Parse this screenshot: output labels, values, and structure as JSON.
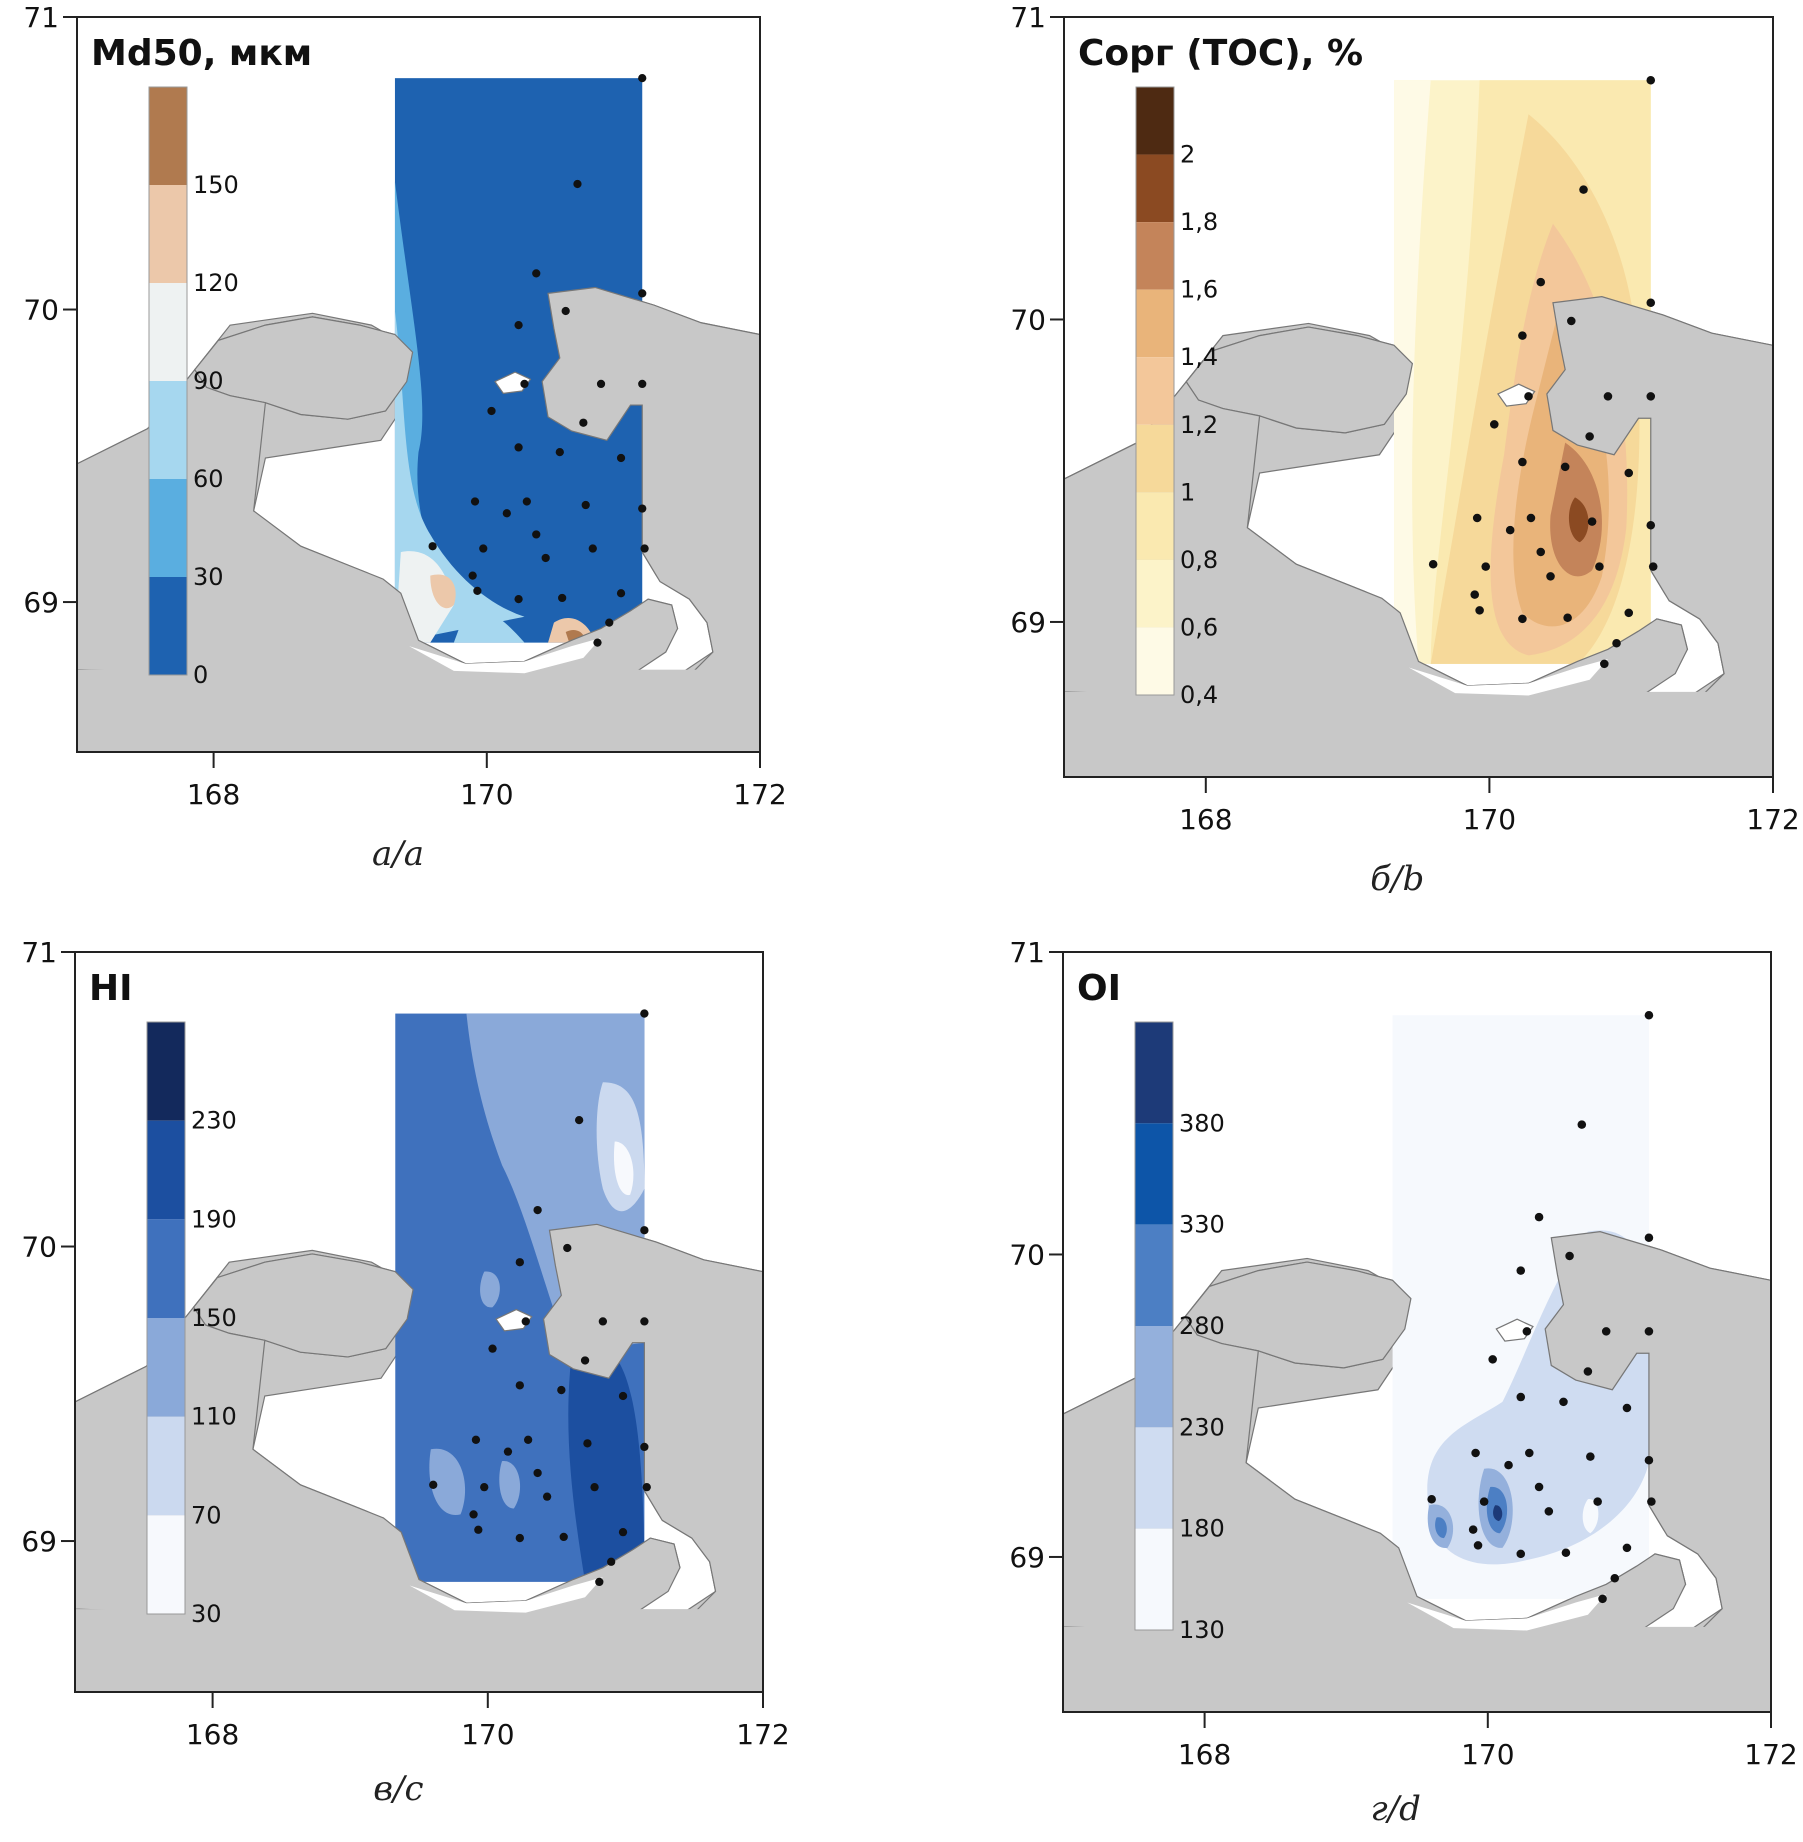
{
  "panels": [
    {
      "id": "a",
      "title": "Md50, мкм",
      "caption": "а/a",
      "palette": "blue-brown",
      "lat_ticks": [
        "71",
        "70",
        "69"
      ],
      "lon_ticks": [
        "168",
        "170",
        "172"
      ],
      "colorbar": {
        "labels": [
          "150",
          "120",
          "90",
          "60",
          "30",
          "0"
        ],
        "colors": [
          "#b07a4f",
          "#ecc8aa",
          "#eef2f2",
          "#a6d7ef",
          "#5aaee0",
          "#1e62b0"
        ]
      }
    },
    {
      "id": "b",
      "title": "Сорг (TOC), %",
      "caption": "б/b",
      "palette": "brown",
      "lat_ticks": [
        "71",
        "70",
        "69"
      ],
      "lon_ticks": [
        "168",
        "170",
        "172"
      ],
      "colorbar": {
        "labels": [
          "2",
          "1,8",
          "1,6",
          "1,4",
          "1,2",
          "1",
          "0,8",
          "0,6",
          "0,4"
        ],
        "colors": [
          "#4e2a12",
          "#8b4a22",
          "#c4845a",
          "#e9b47a",
          "#f3c79a",
          "#f6d99a",
          "#fae9b0",
          "#fcf3c9",
          "#fefae6"
        ]
      }
    },
    {
      "id": "c",
      "title": "HI",
      "caption": "в/c",
      "palette": "blue",
      "lat_ticks": [
        "71",
        "70",
        "69"
      ],
      "lon_ticks": [
        "168",
        "170",
        "172"
      ],
      "colorbar": {
        "labels": [
          "230",
          "190",
          "150",
          "110",
          "70",
          "30"
        ],
        "colors": [
          "#13295c",
          "#1c4fa0",
          "#3f71bd",
          "#8aa9d9",
          "#cbd9ef",
          "#f7f9fd"
        ]
      }
    },
    {
      "id": "d",
      "title": "OI",
      "caption": "г/d",
      "palette": "blue-light",
      "lat_ticks": [
        "71",
        "70",
        "69"
      ],
      "lon_ticks": [
        "168",
        "170",
        "172"
      ],
      "colorbar": {
        "labels": [
          "380",
          "330",
          "280",
          "230",
          "180",
          "130"
        ],
        "colors": [
          "#1d3a78",
          "#0d55a8",
          "#4c7fc4",
          "#94b0dc",
          "#cfdcf1",
          "#f6f9fd"
        ]
      }
    }
  ]
}
